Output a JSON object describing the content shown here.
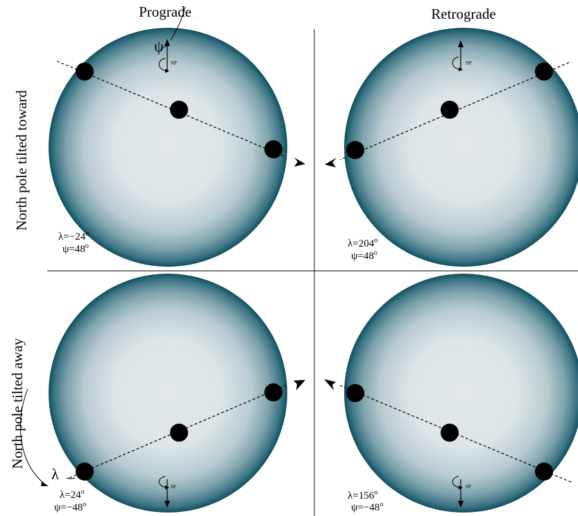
{
  "headers": {
    "left": "Prograde",
    "right": "Retrograde"
  },
  "row_labels": {
    "top": "North pole tilted toward",
    "bottom": "North pole tilted away"
  },
  "symbols": {
    "psi": "ψ",
    "lambda": "λ"
  },
  "pole_labels": {
    "north": "NP",
    "south": "SP"
  },
  "colors": {
    "limb": "#0f4f5f",
    "center": "#e2e8ea",
    "planet": "#000000",
    "divider": "#000000"
  },
  "panels": [
    {
      "id": "top-left",
      "lambda": "λ=−24",
      "psi": "ψ=48",
      "pole": "north"
    },
    {
      "id": "top-right",
      "lambda": "λ=204",
      "psi": "ψ=48",
      "pole": "north"
    },
    {
      "id": "bottom-left",
      "lambda": "λ=24",
      "psi": "ψ=−48",
      "pole": "south"
    },
    {
      "id": "bottom-right",
      "lambda": "λ=156",
      "psi": "ψ=−48",
      "pole": "south"
    }
  ],
  "degree_symbol": "o"
}
